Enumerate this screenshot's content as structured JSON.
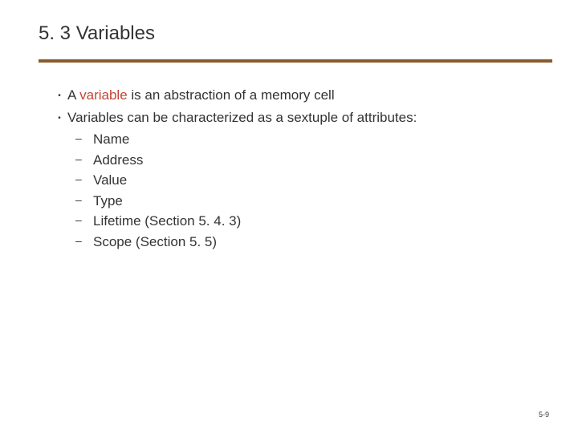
{
  "slide": {
    "title": "5. 3 Variables",
    "divider_color": "#8b5a2b",
    "divider_height": 4,
    "bullets": [
      {
        "prefix": "A ",
        "highlight": "variable",
        "suffix": " is an abstraction of a memory cell"
      },
      {
        "text": "Variables can be characterized as a sextuple of attributes:",
        "subitems": [
          "Name",
          "Address",
          "Value",
          "Type",
          "Lifetime (Section 5. 4. 3)",
          "Scope (Section 5. 5)"
        ]
      }
    ],
    "page_number": "5-9",
    "colors": {
      "text": "#333333",
      "highlight": "#c44536",
      "background": "#ffffff"
    },
    "fonts": {
      "title_size": 24,
      "body_size": 17,
      "page_number_size": 9,
      "family": "Verdana"
    }
  }
}
